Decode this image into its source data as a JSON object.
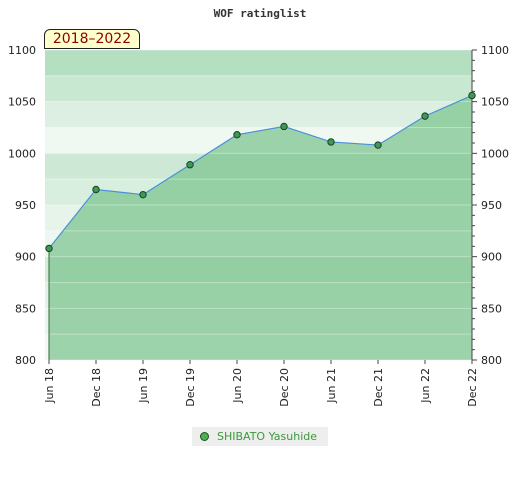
{
  "badge": "2018–2022",
  "legend": {
    "label": "SHIBATO Yasuhide",
    "marker_color": "#4caf50"
  },
  "colors": {
    "area": "#7cc48e",
    "line": "#4a90d9",
    "point": "#3c9a55"
  },
  "chart_data": {
    "type": "area",
    "title": "WOF ratinglist",
    "x": [
      "Jun 18",
      "Dec 18",
      "Jun 19",
      "Dec 19",
      "Jun 20",
      "Dec 20",
      "Jun 21",
      "Dec 21",
      "Jun 22",
      "Dec 22"
    ],
    "series": [
      {
        "name": "SHIBATO Yasuhide",
        "values": [
          908,
          965,
          960,
          989,
          1018,
          1026,
          1011,
          1008,
          1036,
          1056
        ]
      }
    ],
    "ylim": [
      800,
      1100
    ],
    "yticks": [
      800,
      850,
      900,
      950,
      1000,
      1050,
      1100
    ],
    "grid": true,
    "legend_position": "bottom-center",
    "right_axis": true
  }
}
